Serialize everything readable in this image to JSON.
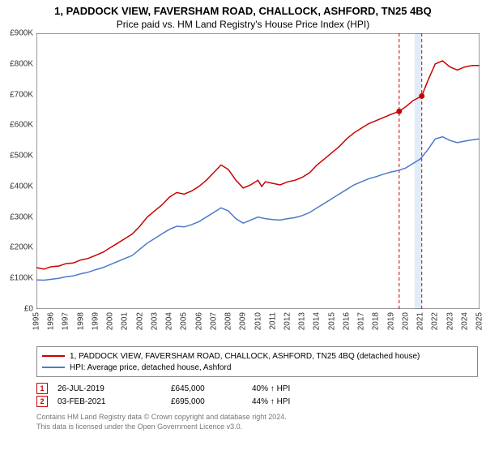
{
  "title": {
    "line1": "1, PADDOCK VIEW, FAVERSHAM ROAD, CHALLOCK, ASHFORD, TN25 4BQ",
    "line2": "Price paid vs. HM Land Registry's House Price Index (HPI)"
  },
  "chart": {
    "type": "line",
    "background_color": "#ffffff",
    "axis_color": "#333333",
    "tick_fontsize": 10,
    "x": {
      "min": 1995,
      "max": 2025,
      "step": 1,
      "labels": [
        "1995",
        "1996",
        "1997",
        "1998",
        "1999",
        "2000",
        "2001",
        "2002",
        "2003",
        "2004",
        "2005",
        "2006",
        "2007",
        "2008",
        "2009",
        "2010",
        "2011",
        "2012",
        "2013",
        "2014",
        "2015",
        "2016",
        "2017",
        "2018",
        "2019",
        "2020",
        "2021",
        "2022",
        "2023",
        "2024",
        "2025"
      ]
    },
    "y": {
      "min": 0,
      "max": 900000,
      "step": 100000,
      "labels": [
        "£0",
        "£100K",
        "£200K",
        "£300K",
        "£400K",
        "£500K",
        "£600K",
        "£700K",
        "£800K",
        "£900K"
      ]
    },
    "series": [
      {
        "name": "property",
        "label": "1, PADDOCK VIEW, FAVERSHAM ROAD, CHALLOCK, ASHFORD, TN25 4BQ (detached house)",
        "color": "#cc0000",
        "line_width": 1.5,
        "data": [
          [
            1995,
            135000
          ],
          [
            1995.5,
            130000
          ],
          [
            1996,
            138000
          ],
          [
            1996.5,
            140000
          ],
          [
            1997,
            148000
          ],
          [
            1997.5,
            150000
          ],
          [
            1998,
            160000
          ],
          [
            1998.5,
            165000
          ],
          [
            1999,
            175000
          ],
          [
            1999.5,
            185000
          ],
          [
            2000,
            200000
          ],
          [
            2000.5,
            215000
          ],
          [
            2001,
            230000
          ],
          [
            2001.5,
            245000
          ],
          [
            2002,
            270000
          ],
          [
            2002.5,
            300000
          ],
          [
            2003,
            320000
          ],
          [
            2003.5,
            340000
          ],
          [
            2004,
            365000
          ],
          [
            2004.5,
            380000
          ],
          [
            2005,
            375000
          ],
          [
            2005.5,
            385000
          ],
          [
            2006,
            400000
          ],
          [
            2006.5,
            420000
          ],
          [
            2007,
            445000
          ],
          [
            2007.5,
            470000
          ],
          [
            2008,
            455000
          ],
          [
            2008.5,
            420000
          ],
          [
            2009,
            395000
          ],
          [
            2009.5,
            405000
          ],
          [
            2010,
            420000
          ],
          [
            2010.25,
            400000
          ],
          [
            2010.5,
            415000
          ],
          [
            2011,
            410000
          ],
          [
            2011.5,
            405000
          ],
          [
            2012,
            415000
          ],
          [
            2012.5,
            420000
          ],
          [
            2013,
            430000
          ],
          [
            2013.5,
            445000
          ],
          [
            2014,
            470000
          ],
          [
            2014.5,
            490000
          ],
          [
            2015,
            510000
          ],
          [
            2015.5,
            530000
          ],
          [
            2016,
            555000
          ],
          [
            2016.5,
            575000
          ],
          [
            2017,
            590000
          ],
          [
            2017.5,
            605000
          ],
          [
            2018,
            615000
          ],
          [
            2018.5,
            625000
          ],
          [
            2019,
            635000
          ],
          [
            2019.56,
            645000
          ],
          [
            2020,
            660000
          ],
          [
            2020.5,
            680000
          ],
          [
            2021.09,
            695000
          ],
          [
            2021.5,
            745000
          ],
          [
            2022,
            800000
          ],
          [
            2022.5,
            810000
          ],
          [
            2023,
            790000
          ],
          [
            2023.5,
            780000
          ],
          [
            2024,
            790000
          ],
          [
            2024.5,
            795000
          ],
          [
            2025,
            795000
          ]
        ]
      },
      {
        "name": "hpi",
        "label": "HPI: Average price, detached house, Ashford",
        "color": "#4a7bc8",
        "line_width": 1.5,
        "data": [
          [
            1995,
            95000
          ],
          [
            1995.5,
            94000
          ],
          [
            1996,
            97000
          ],
          [
            1996.5,
            100000
          ],
          [
            1997,
            105000
          ],
          [
            1997.5,
            108000
          ],
          [
            1998,
            115000
          ],
          [
            1998.5,
            120000
          ],
          [
            1999,
            128000
          ],
          [
            1999.5,
            135000
          ],
          [
            2000,
            145000
          ],
          [
            2000.5,
            155000
          ],
          [
            2001,
            165000
          ],
          [
            2001.5,
            175000
          ],
          [
            2002,
            195000
          ],
          [
            2002.5,
            215000
          ],
          [
            2003,
            230000
          ],
          [
            2003.5,
            245000
          ],
          [
            2004,
            260000
          ],
          [
            2004.5,
            270000
          ],
          [
            2005,
            268000
          ],
          [
            2005.5,
            275000
          ],
          [
            2006,
            285000
          ],
          [
            2006.5,
            300000
          ],
          [
            2007,
            315000
          ],
          [
            2007.5,
            330000
          ],
          [
            2008,
            320000
          ],
          [
            2008.5,
            295000
          ],
          [
            2009,
            280000
          ],
          [
            2009.5,
            290000
          ],
          [
            2010,
            300000
          ],
          [
            2010.5,
            295000
          ],
          [
            2011,
            292000
          ],
          [
            2011.5,
            290000
          ],
          [
            2012,
            295000
          ],
          [
            2012.5,
            298000
          ],
          [
            2013,
            305000
          ],
          [
            2013.5,
            315000
          ],
          [
            2014,
            330000
          ],
          [
            2014.5,
            345000
          ],
          [
            2015,
            360000
          ],
          [
            2015.5,
            375000
          ],
          [
            2016,
            390000
          ],
          [
            2016.5,
            405000
          ],
          [
            2017,
            415000
          ],
          [
            2017.5,
            425000
          ],
          [
            2018,
            432000
          ],
          [
            2018.5,
            440000
          ],
          [
            2019,
            447000
          ],
          [
            2019.5,
            452000
          ],
          [
            2020,
            460000
          ],
          [
            2020.5,
            475000
          ],
          [
            2021,
            490000
          ],
          [
            2021.5,
            520000
          ],
          [
            2022,
            555000
          ],
          [
            2022.5,
            562000
          ],
          [
            2023,
            550000
          ],
          [
            2023.5,
            543000
          ],
          [
            2024,
            548000
          ],
          [
            2024.5,
            552000
          ],
          [
            2025,
            555000
          ]
        ]
      }
    ],
    "sale_markers": [
      {
        "id": "1",
        "x": 2019.56,
        "y": 645000,
        "color": "#cc0000",
        "dash": "4,3",
        "band": null,
        "label_top_x": 2019.56
      },
      {
        "id": "2",
        "x": 2021.09,
        "y": 695000,
        "color": "#cc0000",
        "dash": "4,3",
        "band": {
          "from_x": 2020.6,
          "to_x": 2021.09,
          "fill": "#d6e4f5",
          "opacity": 0.7
        },
        "label_top_x": 2021.09
      }
    ],
    "marker_dot_radius": 3.5,
    "marker_square_size": 12,
    "marker_square_border": "#cc0000",
    "marker_square_text_color": "#cc0000",
    "marker_square_fontsize": 9
  },
  "legend": {
    "border_color": "#888888",
    "fontsize": 10
  },
  "sales": [
    {
      "id": "1",
      "date": "26-JUL-2019",
      "price": "£645,000",
      "vs_hpi": "40% ↑ HPI"
    },
    {
      "id": "2",
      "date": "03-FEB-2021",
      "price": "£695,000",
      "vs_hpi": "44% ↑ HPI"
    }
  ],
  "footer": {
    "line1": "Contains HM Land Registry data © Crown copyright and database right 2024.",
    "line2": "This data is licensed under the Open Government Licence v3.0."
  }
}
